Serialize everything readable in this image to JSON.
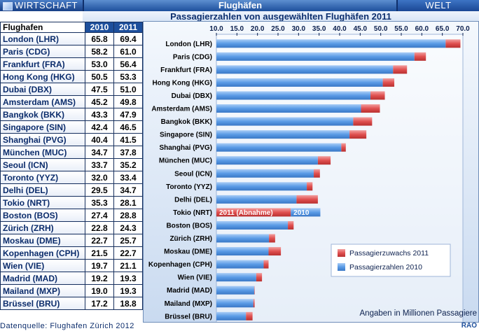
{
  "header": {
    "section": "WIRTSCHAFT",
    "topic": "Flughäfen",
    "region": "WELT",
    "subtitle": "Passagierzahlen von ausgewählten Flughäfen 2011"
  },
  "table": {
    "columns": [
      "Flughafen",
      "2010",
      "2011"
    ],
    "rows": [
      {
        "name": "London (LHR)",
        "v2010": "65.8",
        "v2011": "69.4"
      },
      {
        "name": "Paris (CDG)",
        "v2010": "58.2",
        "v2011": "61.0"
      },
      {
        "name": "Frankfurt (FRA)",
        "v2010": "53.0",
        "v2011": "56.4"
      },
      {
        "name": "Hong Kong (HKG)",
        "v2010": "50.5",
        "v2011": "53.3"
      },
      {
        "name": "Dubai (DBX)",
        "v2010": "47.5",
        "v2011": "51.0"
      },
      {
        "name": "Amsterdam (AMS)",
        "v2010": "45.2",
        "v2011": "49.8"
      },
      {
        "name": "Bangkok (BKK)",
        "v2010": "43.3",
        "v2011": "47.9"
      },
      {
        "name": "Singapore (SIN)",
        "v2010": "42.4",
        "v2011": "46.5"
      },
      {
        "name": "Shanghai (PVG)",
        "v2010": "40.4",
        "v2011": "41.5"
      },
      {
        "name": "München (MUC)",
        "v2010": "34.7",
        "v2011": "37.8"
      },
      {
        "name": "Seoul (ICN)",
        "v2010": "33.7",
        "v2011": "35.2"
      },
      {
        "name": "Toronto (YYZ)",
        "v2010": "32.0",
        "v2011": "33.4"
      },
      {
        "name": "Delhi (DEL)",
        "v2010": "29.5",
        "v2011": "34.7"
      },
      {
        "name": "Tokio (NRT)",
        "v2010": "35.3",
        "v2011": "28.1"
      },
      {
        "name": "Boston (BOS)",
        "v2010": "27.4",
        "v2011": "28.8"
      },
      {
        "name": "Zürich (ZRH)",
        "v2010": "22.8",
        "v2011": "24.3"
      },
      {
        "name": "Moskau (DME)",
        "v2010": "22.7",
        "v2011": "25.7"
      },
      {
        "name": "Kopenhagen (CPH)",
        "v2010": "21.5",
        "v2011": "22.7"
      },
      {
        "name": "Wien (VIE)",
        "v2010": "19.7",
        "v2011": "21.1"
      },
      {
        "name": "Madrid (MAD)",
        "v2010": "19.2",
        "v2011": "19.3"
      },
      {
        "name": "Mailand (MXP)",
        "v2010": "19.0",
        "v2011": "19.3"
      },
      {
        "name": "Brüssel (BRU)",
        "v2010": "17.2",
        "v2011": "18.8"
      }
    ]
  },
  "footer": {
    "source": "Datenquelle: Flughafen Zürich  2012",
    "credit": "RAO"
  },
  "chart_data": {
    "type": "bar",
    "orientation": "horizontal",
    "categories": [
      "London (LHR)",
      "Paris (CDG)",
      "Frankfurt (FRA)",
      "Hong Kong (HKG)",
      "Dubai (DBX)",
      "Amsterdam (AMS)",
      "Bangkok (BKK)",
      "Singapore (SIN)",
      "Shanghai (PVG)",
      "München (MUC)",
      "Seoul (ICN)",
      "Toronto (YYZ)",
      "Delhi (DEL)",
      "Tokio (NRT)",
      "Boston (BOS)",
      "Zürich (ZRH)",
      "Moskau (DME)",
      "Kopenhagen (CPH)",
      "Wien (VIE)",
      "Madrid (MAD)",
      "Mailand (MXP)",
      "Brüssel (BRU)"
    ],
    "series": [
      {
        "name": "Passagierzahlen 2010",
        "color": "#5a9be6",
        "values": [
          65.8,
          58.2,
          53.0,
          50.5,
          47.5,
          45.2,
          43.3,
          42.4,
          40.4,
          34.7,
          33.7,
          32.0,
          29.5,
          35.3,
          27.4,
          22.8,
          22.7,
          21.5,
          19.7,
          19.2,
          19.0,
          17.2
        ]
      },
      {
        "name": "Passagierzuwachs 2011",
        "color": "#e05050",
        "values": [
          69.4,
          61.0,
          56.4,
          53.3,
          51.0,
          49.8,
          47.9,
          46.5,
          41.5,
          37.8,
          35.2,
          33.4,
          34.7,
          28.1,
          28.8,
          24.3,
          25.7,
          22.7,
          21.1,
          19.3,
          19.3,
          18.8
        ]
      }
    ],
    "xlim": [
      10,
      70
    ],
    "xticks": [
      "10.0",
      "15.0",
      "20.0",
      "25.0",
      "30.0",
      "35.0",
      "40.0",
      "45.0",
      "50.0",
      "55.0",
      "60.0",
      "65.0",
      "70.0"
    ],
    "legend": [
      "Passagierzuwachs 2011",
      "Passagierzahlen 2010"
    ],
    "legend_position": "bottom-right",
    "annotations": {
      "decline_label": "2011 (Abnahme)",
      "decline_year": "2010",
      "units_note": "Angaben in Millionen Passagiere"
    },
    "grid": false
  }
}
